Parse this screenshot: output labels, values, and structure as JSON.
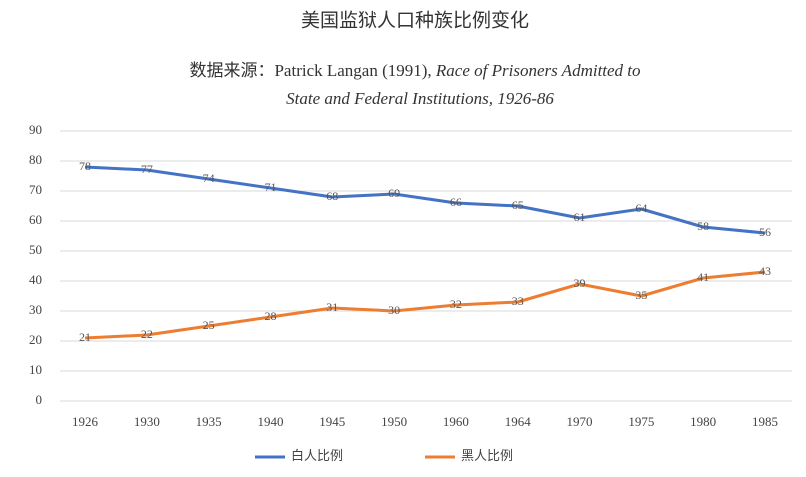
{
  "chart_data": {
    "type": "line",
    "title": "美国监狱人口种族比例变化",
    "subtitle": [
      "数据来源：Patrick Langan (1991),",
      "Race of Prisoners Admitted to",
      "State and Federal Institutions, 1926-86"
    ],
    "categories": [
      "1926",
      "1930",
      "1935",
      "1940",
      "1945",
      "1950",
      "1960",
      "1964",
      "1970",
      "1975",
      "1980",
      "1985"
    ],
    "series": [
      {
        "name": "白人比例",
        "color": "#4472c4",
        "values": [
          78,
          77,
          74,
          71,
          68,
          69,
          66,
          65,
          61,
          64,
          58,
          56
        ]
      },
      {
        "name": "黑人比例",
        "color": "#ed7d31",
        "values": [
          21,
          22,
          25,
          28,
          31,
          30,
          32,
          33,
          39,
          35,
          41,
          43
        ]
      }
    ],
    "ylim": [
      0,
      90
    ],
    "yticks": [
      0,
      10,
      20,
      30,
      40,
      50,
      60,
      70,
      80,
      90
    ],
    "grid": true,
    "legend": "bottom"
  }
}
